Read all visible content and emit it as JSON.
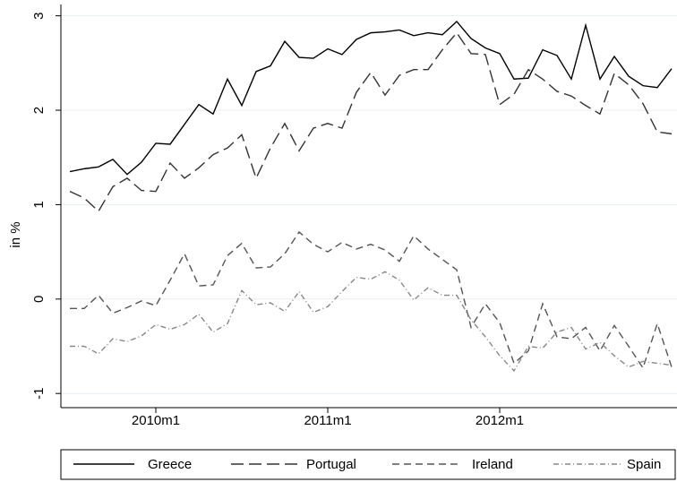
{
  "chart_data": {
    "type": "line",
    "y_label": "in %",
    "categories": [
      null,
      null,
      null,
      null,
      null,
      null,
      "2010m1",
      null,
      null,
      null,
      null,
      null,
      null,
      null,
      null,
      null,
      null,
      null,
      "2011m1",
      null,
      null,
      null,
      null,
      null,
      null,
      null,
      null,
      null,
      null,
      null,
      "2012m1",
      null,
      null,
      null,
      null,
      null,
      null,
      null,
      null,
      null,
      null,
      null,
      null
    ],
    "series": [
      {
        "name": "Greece",
        "color": "#000000",
        "dash": "none",
        "values": [
          1.35,
          1.38,
          1.4,
          1.48,
          1.32,
          1.45,
          1.65,
          1.64,
          1.85,
          2.06,
          1.96,
          2.33,
          2.05,
          2.41,
          2.47,
          2.73,
          2.56,
          2.55,
          2.65,
          2.59,
          2.75,
          2.82,
          2.83,
          2.85,
          2.79,
          2.82,
          2.8,
          2.94,
          2.76,
          2.66,
          2.6,
          2.33,
          2.34,
          2.64,
          2.58,
          2.33,
          2.9,
          2.33,
          2.57,
          2.36,
          2.26,
          2.24,
          2.44
        ]
      },
      {
        "name": "Portugal",
        "color": "#333333",
        "dash": "14 6",
        "values": [
          1.14,
          1.07,
          0.93,
          1.19,
          1.28,
          1.15,
          1.14,
          1.44,
          1.28,
          1.39,
          1.53,
          1.6,
          1.74,
          1.28,
          1.6,
          1.86,
          1.57,
          1.81,
          1.86,
          1.81,
          2.19,
          2.4,
          2.16,
          2.37,
          2.43,
          2.43,
          2.64,
          2.82,
          2.6,
          2.59,
          2.06,
          2.17,
          2.43,
          2.33,
          2.2,
          2.15,
          2.05,
          1.96,
          2.39,
          2.27,
          2.07,
          1.77,
          1.75
        ]
      },
      {
        "name": "Ireland",
        "color": "#555555",
        "dash": "8 5",
        "values": [
          -0.1,
          -0.1,
          0.04,
          -0.15,
          -0.09,
          -0.02,
          -0.07,
          0.2,
          0.48,
          0.14,
          0.15,
          0.46,
          0.59,
          0.33,
          0.34,
          0.48,
          0.71,
          0.58,
          0.5,
          0.6,
          0.53,
          0.58,
          0.52,
          0.4,
          0.67,
          0.53,
          0.42,
          0.31,
          -0.3,
          -0.05,
          -0.25,
          -0.68,
          -0.55,
          -0.05,
          -0.4,
          -0.42,
          -0.3,
          -0.55,
          -0.28,
          -0.5,
          -0.73,
          -0.26,
          -0.72
        ]
      },
      {
        "name": "Spain",
        "color": "#888888",
        "dash": "6 3 1 3",
        "values": [
          -0.5,
          -0.5,
          -0.58,
          -0.42,
          -0.45,
          -0.39,
          -0.27,
          -0.32,
          -0.27,
          -0.16,
          -0.35,
          -0.26,
          0.09,
          -0.06,
          -0.04,
          -0.13,
          0.08,
          -0.14,
          -0.08,
          0.08,
          0.23,
          0.21,
          0.29,
          0.2,
          -0.01,
          0.12,
          0.04,
          0.04,
          -0.22,
          -0.4,
          -0.6,
          -0.76,
          -0.5,
          -0.52,
          -0.35,
          -0.3,
          -0.53,
          -0.46,
          -0.6,
          -0.72,
          -0.66,
          -0.68,
          -0.7
        ]
      }
    ],
    "ylim": [
      -1.15,
      3.12
    ],
    "yticks": [
      -1,
      0,
      1,
      2,
      3
    ],
    "grid": true,
    "legend": "bottom"
  }
}
